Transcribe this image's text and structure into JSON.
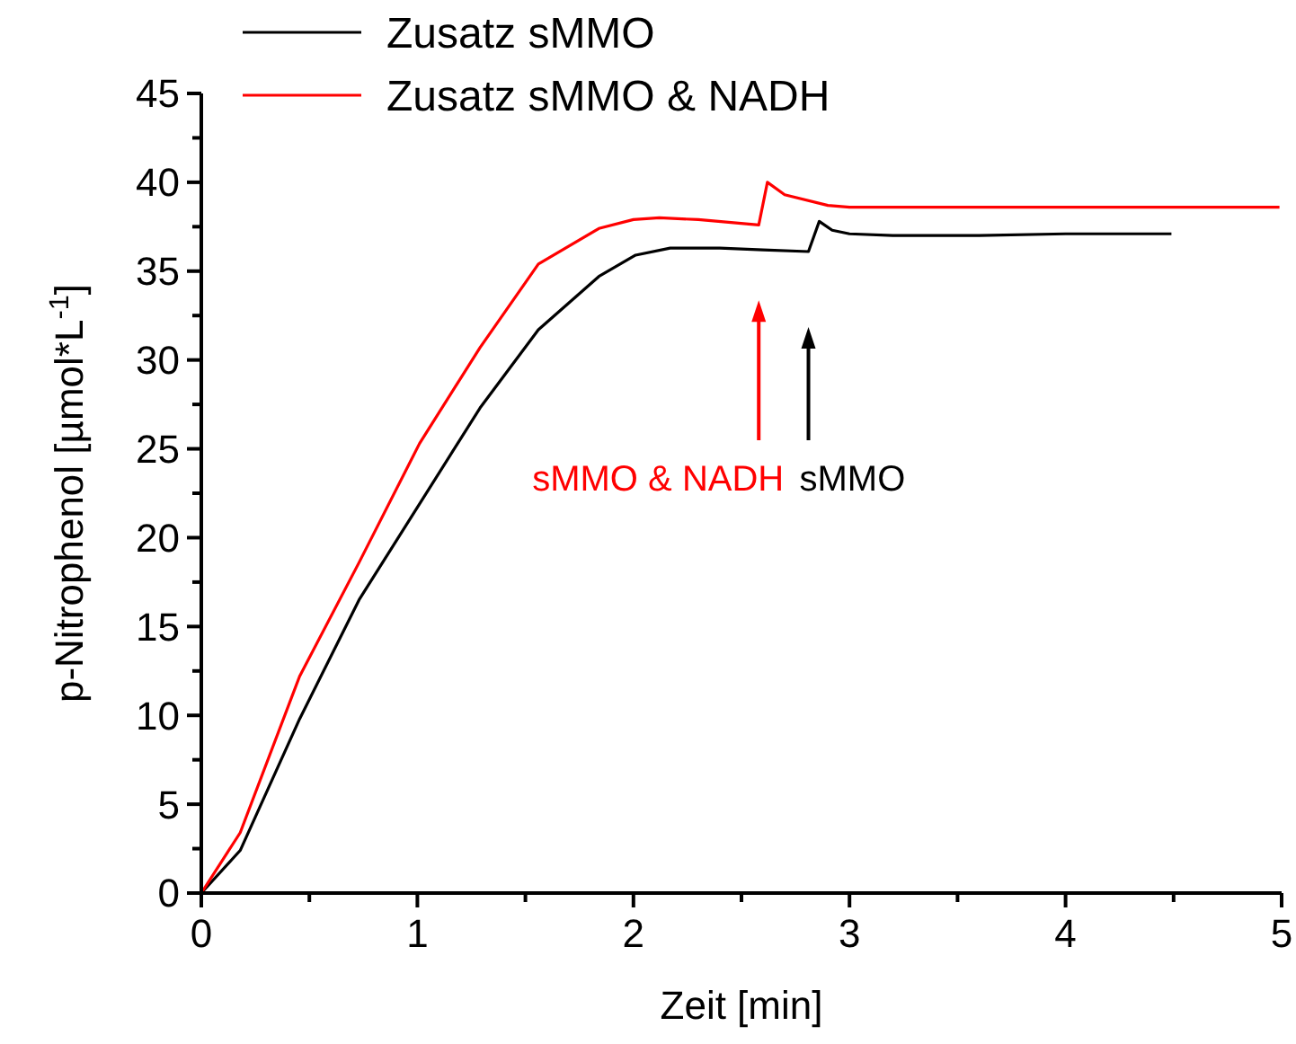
{
  "chart_data": {
    "type": "line",
    "xlabel": "Zeit [min]",
    "ylabel": "p-Nitrophenol [µmol*L$^{-1}$]",
    "xlim": [
      0,
      5
    ],
    "ylim": [
      0,
      45
    ],
    "xticks": [
      0,
      {
        "value": 0.5,
        "label": null
      },
      1,
      {
        "value": 1.5,
        "label": null
      },
      2,
      {
        "value": 2.5,
        "label": null
      },
      3,
      {
        "value": 3.5,
        "label": null
      },
      4,
      {
        "value": 4.5,
        "label": null
      },
      5
    ],
    "yticks": [
      0,
      {
        "value": 2.5,
        "label": null
      },
      5,
      {
        "value": 7.5,
        "label": null
      },
      10,
      {
        "value": 12.5,
        "label": null
      },
      15,
      {
        "value": 17.5,
        "label": null
      },
      20,
      {
        "value": 22.5,
        "label": null
      },
      25,
      {
        "value": 27.5,
        "label": null
      },
      30,
      {
        "value": 32.5,
        "label": null
      },
      35,
      {
        "value": 37.5,
        "label": null
      },
      40,
      {
        "value": 42.5,
        "label": null
      },
      45
    ],
    "grid": false,
    "legend": "top left",
    "marker": "none",
    "line_style": "solid",
    "series": [
      {
        "name": "Zusatz sMMO",
        "color": "#000000",
        "x": [
          0,
          0.18,
          0.455,
          0.73,
          1.01,
          1.29,
          1.56,
          1.84,
          2.01,
          2.17,
          2.4,
          2.6,
          2.81,
          2.86,
          2.92,
          3.0,
          3.2,
          3.6,
          4.0,
          4.49
        ],
        "values": [
          0,
          2.4,
          9.8,
          16.5,
          21.9,
          27.3,
          31.7,
          34.7,
          35.9,
          36.3,
          36.3,
          36.2,
          36.1,
          37.8,
          37.3,
          37.1,
          37.0,
          37.0,
          37.1,
          37.1
        ]
      },
      {
        "name": "Zusatz sMMO & NADH",
        "color": "#ff0000",
        "x": [
          0,
          0.18,
          0.455,
          0.73,
          1.01,
          1.29,
          1.56,
          1.84,
          2.0,
          2.12,
          2.3,
          2.58,
          2.62,
          2.7,
          2.9,
          3.0,
          3.5,
          4.0,
          4.5,
          4.99
        ],
        "values": [
          0,
          3.4,
          12.2,
          18.6,
          25.3,
          30.7,
          35.4,
          37.4,
          37.9,
          38.0,
          37.9,
          37.6,
          40.0,
          39.3,
          38.7,
          38.6,
          38.6,
          38.6,
          38.6,
          38.6
        ]
      }
    ],
    "annotations": [
      "sMMO",
      "sMMO & NADH"
    ]
  }
}
